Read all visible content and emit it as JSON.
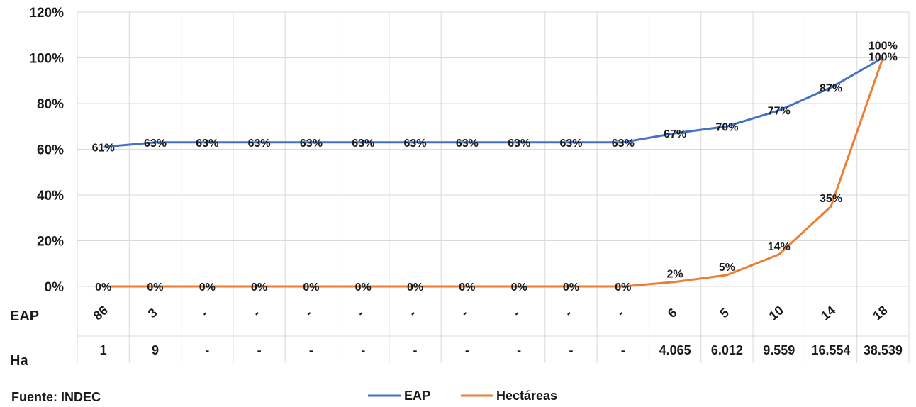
{
  "source": "Fuente: INDEC",
  "legend": {
    "eap": "EAP",
    "ha": "Hectáreas"
  },
  "rows": {
    "eap": "EAP",
    "ha": "Ha"
  },
  "colors": {
    "eap": "#4472c4",
    "ha": "#ed7d31",
    "grid": "#d9d9d9",
    "text": "#1a1a1a"
  },
  "chart_data": {
    "type": "line",
    "x": [
      1,
      2,
      3,
      4,
      5,
      6,
      7,
      8,
      9,
      10,
      11,
      12,
      13,
      14,
      15,
      16
    ],
    "eap_counts": [
      "86",
      "3",
      "-",
      "-",
      "-",
      "-",
      "-",
      "-",
      "-",
      "-",
      "-",
      "6",
      "5",
      "10",
      "14",
      "18"
    ],
    "ha_values": [
      "1",
      "9",
      "-",
      "-",
      "-",
      "-",
      "-",
      "-",
      "-",
      "-",
      "-",
      "4.065",
      "6.012",
      "9.559",
      "16.554",
      "38.539"
    ],
    "ylim": [
      0,
      120
    ],
    "yticks": [
      "0%",
      "20%",
      "40%",
      "60%",
      "80%",
      "100%",
      "120%"
    ],
    "grid": true,
    "legend_position": "bottom",
    "series": [
      {
        "name": "EAP",
        "values": [
          61,
          63,
          63,
          63,
          63,
          63,
          63,
          63,
          63,
          63,
          63,
          67,
          70,
          77,
          87,
          100
        ],
        "labels": [
          "61%",
          "63%",
          "63%",
          "63%",
          "63%",
          "63%",
          "63%",
          "63%",
          "63%",
          "63%",
          "63%",
          "67%",
          "70%",
          "77%",
          "87%",
          "100%"
        ]
      },
      {
        "name": "Hectáreas",
        "values": [
          0,
          0,
          0,
          0,
          0,
          0,
          0,
          0,
          0,
          0,
          0,
          2,
          5,
          14,
          35,
          100
        ],
        "labels": [
          "0%",
          "0%",
          "0%",
          "0%",
          "0%",
          "0%",
          "0%",
          "0%",
          "0%",
          "0%",
          "0%",
          "2%",
          "5%",
          "14%",
          "35%",
          "100%"
        ]
      }
    ]
  }
}
